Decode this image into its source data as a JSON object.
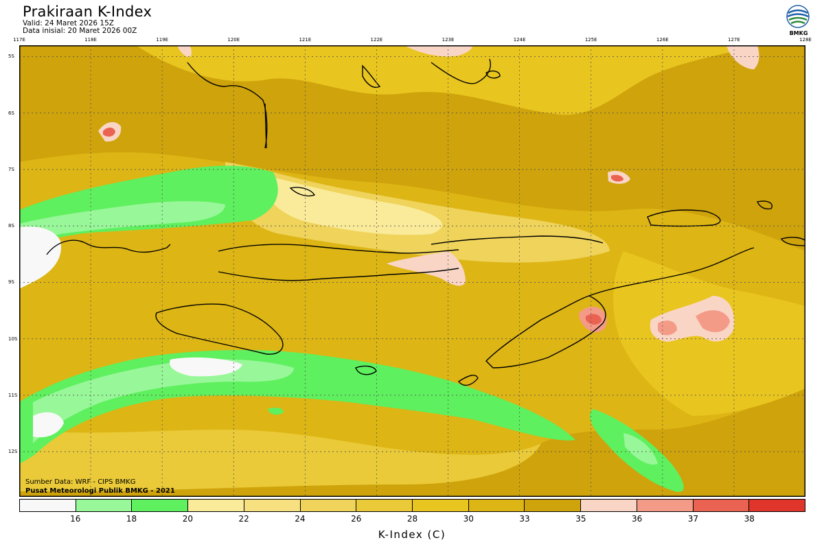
{
  "header": {
    "title": "Prakiraan K-Index",
    "valid": "Valid: 24 Maret 2026 15Z",
    "initial": "Data inisial: 20 Maret 2026 00Z"
  },
  "logo": {
    "text": "BMKG",
    "icon": "bmkg-logo-icon"
  },
  "map": {
    "lon_labels": [
      "117E",
      "118E",
      "119E",
      "120E",
      "121E",
      "122E",
      "123E",
      "124E",
      "125E",
      "126E",
      "127E",
      "128E"
    ],
    "lat_labels": [
      "5S",
      "6S",
      "7S",
      "8S",
      "9S",
      "10S",
      "11S",
      "12S"
    ],
    "lon_range": [
      117,
      128
    ],
    "lat_range": [
      -4.8,
      -12.8
    ],
    "grid": true,
    "colors": {
      "white": "#f8f8f8",
      "lightgreen": "#98f798",
      "green": "#5ef05e",
      "y20": "#faeb9a",
      "y22": "#f6e07f",
      "y24": "#efd35a",
      "y26": "#eaca38",
      "y28": "#e9c51f",
      "y30": "#ddb515",
      "y33": "#cfa30b",
      "p35": "#f9d5c6",
      "s36": "#f49b88",
      "r37": "#ea6352",
      "r38": "#e0352a"
    }
  },
  "credits": {
    "source": "Sumber Data: WRF - CIPS BMKG",
    "center": "Pusat Meteorologi Publik BMKG - 2021"
  },
  "legend": {
    "colors": [
      "#f8f8f8",
      "#98f798",
      "#5ef05e",
      "#faeb9a",
      "#f6e07f",
      "#efd35a",
      "#eaca38",
      "#e9c51f",
      "#ddb515",
      "#cfa30b",
      "#f9d5c6",
      "#f49b88",
      "#ea6352",
      "#e0352a"
    ],
    "labels": [
      "16",
      "18",
      "20",
      "22",
      "24",
      "26",
      "28",
      "30",
      "33",
      "35",
      "36",
      "37",
      "38"
    ],
    "title": "K-Index (C)"
  }
}
